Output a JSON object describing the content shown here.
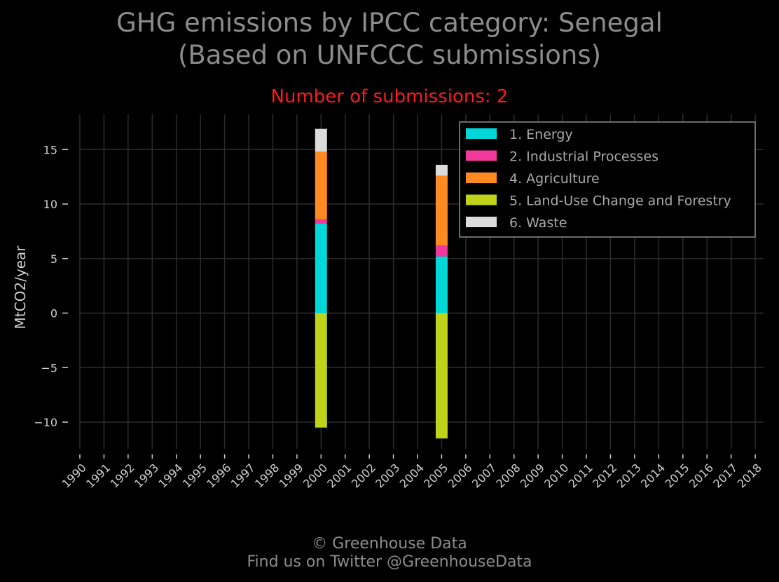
{
  "header": {
    "title_line1": "GHG emissions by IPCC category: Senegal",
    "title_line2": "(Based on UNFCCC submissions)",
    "subtitle": "Number of submissions: 2"
  },
  "footer": {
    "line1": "© Greenhouse Data",
    "line2": "Find us on Twitter @GreenhouseData"
  },
  "chart_data": {
    "type": "bar",
    "stacked": true,
    "title": "GHG emissions by IPCC category: Senegal",
    "subtitle": "Number of submissions: 2",
    "ylabel": "MtCO2/year",
    "xlabel": "",
    "categories": [
      "1990",
      "1991",
      "1992",
      "1993",
      "1994",
      "1995",
      "1996",
      "1997",
      "1998",
      "1999",
      "2000",
      "2001",
      "2002",
      "2003",
      "2004",
      "2005",
      "2006",
      "2007",
      "2008",
      "2009",
      "2010",
      "2011",
      "2012",
      "2013",
      "2014",
      "2015",
      "2016",
      "2017",
      "2018"
    ],
    "yticks": [
      -10,
      -5,
      0,
      5,
      10,
      15
    ],
    "ytick_labels": [
      "−10",
      "−5",
      "0",
      "5",
      "10",
      "15"
    ],
    "ylim": [
      -12.5,
      18.5
    ],
    "grid": true,
    "legend_position": "top-right",
    "series": [
      {
        "name": "1. Energy",
        "color": "#00d8d8",
        "values": [
          null,
          null,
          null,
          null,
          null,
          null,
          null,
          null,
          null,
          null,
          8.2,
          null,
          null,
          null,
          null,
          5.2,
          null,
          null,
          null,
          null,
          null,
          null,
          null,
          null,
          null,
          null,
          null,
          null,
          null
        ]
      },
      {
        "name": "2. Industrial Processes",
        "color": "#f0399a",
        "values": [
          null,
          null,
          null,
          null,
          null,
          null,
          null,
          null,
          null,
          null,
          0.4,
          null,
          null,
          null,
          null,
          1.0,
          null,
          null,
          null,
          null,
          null,
          null,
          null,
          null,
          null,
          null,
          null,
          null,
          null
        ]
      },
      {
        "name": "4. Agriculture",
        "color": "#ff8a21",
        "values": [
          null,
          null,
          null,
          null,
          null,
          null,
          null,
          null,
          null,
          null,
          6.2,
          null,
          null,
          null,
          null,
          6.4,
          null,
          null,
          null,
          null,
          null,
          null,
          null,
          null,
          null,
          null,
          null,
          null,
          null
        ]
      },
      {
        "name": "5. Land-Use Change and Forestry",
        "color": "#bfd31a",
        "values": [
          null,
          null,
          null,
          null,
          null,
          null,
          null,
          null,
          null,
          null,
          -10.5,
          null,
          null,
          null,
          null,
          -11.5,
          null,
          null,
          null,
          null,
          null,
          null,
          null,
          null,
          null,
          null,
          null,
          null,
          null
        ]
      },
      {
        "name": "6. Waste",
        "color": "#dcdcdc",
        "values": [
          null,
          null,
          null,
          null,
          null,
          null,
          null,
          null,
          null,
          null,
          2.1,
          null,
          null,
          null,
          null,
          1.0,
          null,
          null,
          null,
          null,
          null,
          null,
          null,
          null,
          null,
          null,
          null,
          null,
          null
        ]
      }
    ],
    "colors": {
      "background": "#000000",
      "grid": "#2c2c2c",
      "title": "#8c8c8c",
      "subtitle": "#ff1a1a",
      "tick": "#cfcfcf",
      "legend_border": "#8c8c8c"
    }
  }
}
